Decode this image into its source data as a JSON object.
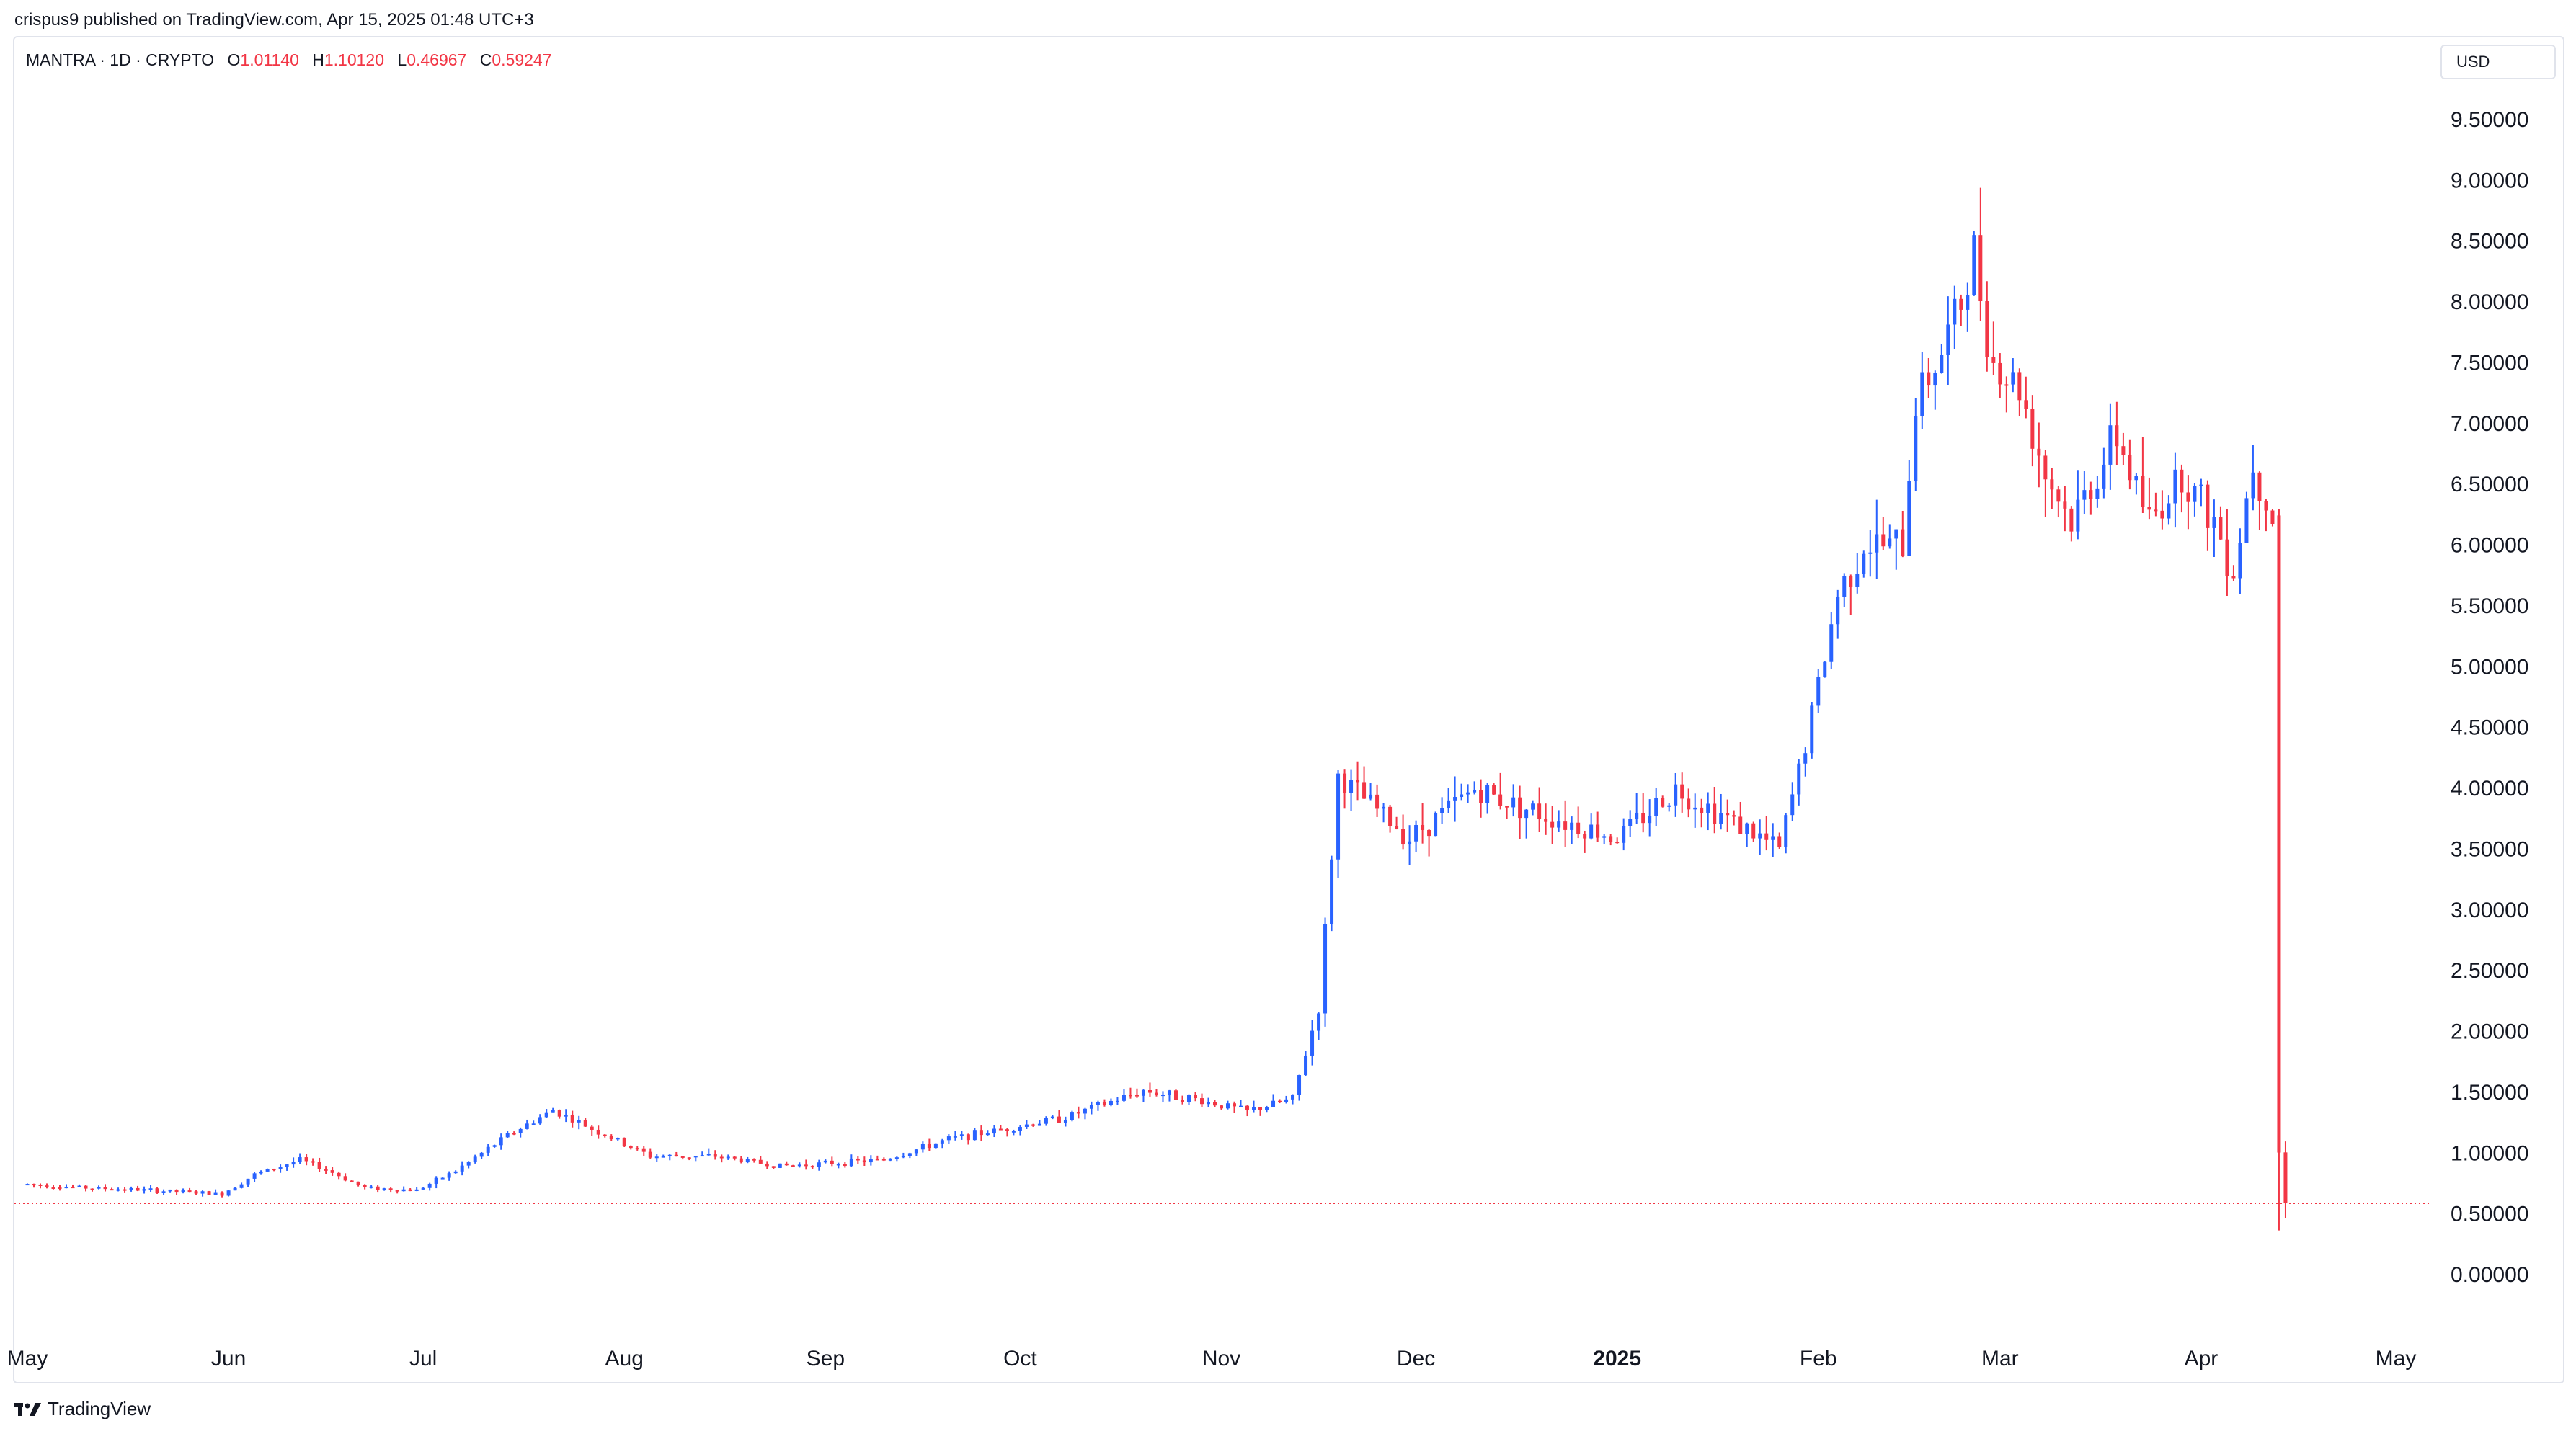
{
  "header": {
    "published": "crispus9 published on TradingView.com, Apr 15, 2025 01:48 UTC+3"
  },
  "legend": {
    "symbol": "MANTRA · 1D · CRYPTO",
    "open_label": "O",
    "open": "1.01140",
    "high_label": "H",
    "high": "1.10120",
    "low_label": "L",
    "low": "0.46967",
    "close_label": "C",
    "close": "0.59247"
  },
  "currency": "USD",
  "footer": {
    "brand": "TradingView",
    "logo_icon": "tradingview-logo-icon"
  },
  "colors": {
    "up": "#2962ff",
    "down": "#f23645",
    "axis_text": "#131722",
    "grid_border": "#e0e3eb"
  },
  "chart_data": {
    "type": "candlestick",
    "title": "",
    "interval": "1D",
    "y_ticks": [
      "0.00000",
      "0.50000",
      "1.00000",
      "1.50000",
      "2.00000",
      "2.50000",
      "3.00000",
      "3.50000",
      "4.00000",
      "4.50000",
      "5.00000",
      "5.50000",
      "6.00000",
      "6.50000",
      "7.00000",
      "7.50000",
      "8.00000",
      "8.50000",
      "9.00000",
      "9.50000"
    ],
    "ylim": [
      -0.5,
      10.0
    ],
    "x_ticks": [
      {
        "label": "May",
        "date": "2024-05-01",
        "bold": false
      },
      {
        "label": "Jun",
        "date": "2024-06-01",
        "bold": false
      },
      {
        "label": "Jul",
        "date": "2024-07-01",
        "bold": false
      },
      {
        "label": "Aug",
        "date": "2024-08-01",
        "bold": false
      },
      {
        "label": "Sep",
        "date": "2024-09-01",
        "bold": false
      },
      {
        "label": "Oct",
        "date": "2024-10-01",
        "bold": false
      },
      {
        "label": "Nov",
        "date": "2024-11-01",
        "bold": false
      },
      {
        "label": "Dec",
        "date": "2024-12-01",
        "bold": false
      },
      {
        "label": "2025",
        "date": "2025-01-01",
        "bold": true
      },
      {
        "label": "Feb",
        "date": "2025-02-01",
        "bold": false
      },
      {
        "label": "Mar",
        "date": "2025-03-01",
        "bold": false
      },
      {
        "label": "Apr",
        "date": "2025-04-01",
        "bold": false
      },
      {
        "label": "May",
        "date": "2025-05-01",
        "bold": false
      }
    ],
    "last_price": 0.59247,
    "price_series": [
      {
        "date": "2024-05-01",
        "close": 0.75
      },
      {
        "date": "2024-05-10",
        "close": 0.72
      },
      {
        "date": "2024-05-20",
        "close": 0.7
      },
      {
        "date": "2024-05-31",
        "close": 0.67
      },
      {
        "date": "2024-06-05",
        "close": 0.83
      },
      {
        "date": "2024-06-12",
        "close": 0.95
      },
      {
        "date": "2024-06-16",
        "close": 0.87
      },
      {
        "date": "2024-06-22",
        "close": 0.72
      },
      {
        "date": "2024-06-30",
        "close": 0.7
      },
      {
        "date": "2024-07-06",
        "close": 0.86
      },
      {
        "date": "2024-07-14",
        "close": 1.15
      },
      {
        "date": "2024-07-21",
        "close": 1.36
      },
      {
        "date": "2024-07-28",
        "close": 1.18
      },
      {
        "date": "2024-08-05",
        "close": 0.98
      },
      {
        "date": "2024-08-15",
        "close": 0.98
      },
      {
        "date": "2024-08-25",
        "close": 0.9
      },
      {
        "date": "2024-09-01",
        "close": 0.92
      },
      {
        "date": "2024-09-10",
        "close": 0.95
      },
      {
        "date": "2024-09-20",
        "close": 1.12
      },
      {
        "date": "2024-09-30",
        "close": 1.22
      },
      {
        "date": "2024-10-08",
        "close": 1.3
      },
      {
        "date": "2024-10-20",
        "close": 1.52
      },
      {
        "date": "2024-10-28",
        "close": 1.45
      },
      {
        "date": "2024-11-05",
        "close": 1.35
      },
      {
        "date": "2024-11-12",
        "close": 1.45
      },
      {
        "date": "2024-11-16",
        "close": 2.2
      },
      {
        "date": "2024-11-19",
        "close": 4.1
      },
      {
        "date": "2024-11-30",
        "close": 3.6
      },
      {
        "date": "2024-12-10",
        "close": 4.0
      },
      {
        "date": "2024-12-20",
        "close": 3.8
      },
      {
        "date": "2025-01-01",
        "close": 3.6
      },
      {
        "date": "2025-01-10",
        "close": 4.0
      },
      {
        "date": "2025-01-20",
        "close": 3.7
      },
      {
        "date": "2025-01-26",
        "close": 3.5
      },
      {
        "date": "2025-01-31",
        "close": 4.6
      },
      {
        "date": "2025-02-04",
        "close": 5.6
      },
      {
        "date": "2025-02-08",
        "close": 6.0
      },
      {
        "date": "2025-02-14",
        "close": 6.0
      },
      {
        "date": "2025-02-16",
        "close": 7.2
      },
      {
        "date": "2025-02-20",
        "close": 7.6
      },
      {
        "date": "2025-02-23",
        "close": 8.0
      },
      {
        "date": "2025-02-25",
        "close": 8.4
      },
      {
        "date": "2025-02-28",
        "close": 7.5
      },
      {
        "date": "2025-03-04",
        "close": 7.3
      },
      {
        "date": "2025-03-08",
        "close": 6.6
      },
      {
        "date": "2025-03-12",
        "close": 6.2
      },
      {
        "date": "2025-03-19",
        "close": 6.9
      },
      {
        "date": "2025-03-24",
        "close": 6.2
      },
      {
        "date": "2025-03-29",
        "close": 6.6
      },
      {
        "date": "2025-04-03",
        "close": 6.2
      },
      {
        "date": "2025-04-06",
        "close": 5.8
      },
      {
        "date": "2025-04-09",
        "close": 6.7
      },
      {
        "date": "2025-04-12",
        "close": 6.25
      },
      {
        "date": "2025-04-13",
        "close": 1.01
      },
      {
        "date": "2025-04-14",
        "close": 0.59
      }
    ],
    "final_candles": [
      {
        "date": "2025-04-13",
        "open": 6.25,
        "high": 6.3,
        "low": 0.37,
        "close": 1.01
      },
      {
        "date": "2025-04-14",
        "open": 1.0114,
        "high": 1.1012,
        "low": 0.46967,
        "close": 0.59247
      }
    ]
  }
}
